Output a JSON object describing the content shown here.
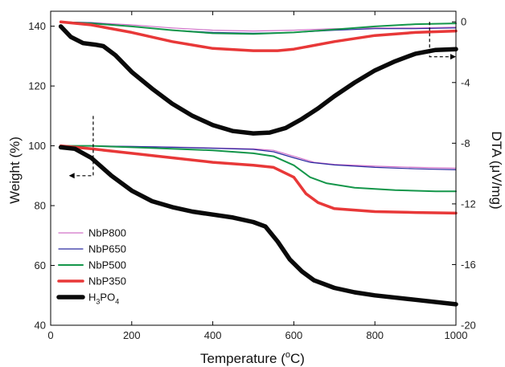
{
  "chart_data": {
    "type": "line",
    "xlabel_main": "Temperature (",
    "xlabel_sup": "o",
    "xlabel_tail": "C)",
    "ylabel_left": "Weight (%)",
    "ylabel_right": "DTA (μV/mg)",
    "xlim": [
      0,
      1000
    ],
    "ylim_left": [
      40,
      145
    ],
    "ylim_right": [
      -20,
      0.7
    ],
    "x_ticks": [
      0,
      200,
      400,
      600,
      800,
      1000
    ],
    "y_left_ticks": [
      40,
      60,
      80,
      100,
      120,
      140
    ],
    "y_right_ticks": [
      0,
      -4,
      -8,
      -12,
      -16,
      -20
    ],
    "grid": false,
    "legend_position": "lower-left",
    "series": [
      {
        "name": "NbP800",
        "color": "#d070c8",
        "width": 1.2,
        "weight": {
          "x": [
            25,
            100,
            200,
            300,
            400,
            500,
            550,
            600,
            650,
            700,
            800,
            900,
            1000
          ],
          "y": [
            100,
            100,
            99.8,
            99.6,
            99.3,
            99,
            98.5,
            96.5,
            94.5,
            93.8,
            93.2,
            92.8,
            92.5
          ]
        },
        "dta": {
          "x": [
            25,
            100,
            200,
            300,
            400,
            500,
            600,
            700,
            800,
            900,
            1000
          ],
          "y": [
            0,
            -0.05,
            -0.2,
            -0.4,
            -0.55,
            -0.6,
            -0.55,
            -0.45,
            -0.4,
            -0.4,
            -0.35
          ]
        }
      },
      {
        "name": "NbP650",
        "color": "#2a2aa0",
        "width": 1.2,
        "weight": {
          "x": [
            25,
            100,
            200,
            300,
            400,
            500,
            550,
            600,
            640,
            700,
            800,
            900,
            1000
          ],
          "y": [
            100,
            100,
            99.8,
            99.5,
            99.2,
            98.8,
            98,
            96,
            94.5,
            93.6,
            92.8,
            92.3,
            92
          ]
        },
        "dta": {
          "x": [
            25,
            100,
            200,
            300,
            400,
            500,
            600,
            700,
            800,
            900,
            1000
          ],
          "y": [
            0,
            -0.05,
            -0.3,
            -0.55,
            -0.7,
            -0.75,
            -0.7,
            -0.55,
            -0.45,
            -0.45,
            -0.4
          ]
        }
      },
      {
        "name": "NbP500",
        "color": "#14964a",
        "width": 2,
        "weight": {
          "x": [
            25,
            100,
            200,
            300,
            400,
            500,
            550,
            600,
            640,
            680,
            750,
            850,
            950,
            1000
          ],
          "y": [
            100,
            100,
            99.5,
            99,
            98.5,
            97.5,
            96.5,
            93.5,
            89.5,
            87.5,
            86,
            85.2,
            84.8,
            84.8
          ]
        },
        "dta": {
          "x": [
            25,
            100,
            200,
            300,
            400,
            500,
            600,
            700,
            800,
            900,
            1000
          ],
          "y": [
            0,
            -0.1,
            -0.3,
            -0.55,
            -0.75,
            -0.8,
            -0.7,
            -0.5,
            -0.3,
            -0.15,
            -0.1
          ]
        }
      },
      {
        "name": "NbP350",
        "color": "#e83838",
        "width": 3.5,
        "weight": {
          "x": [
            25,
            100,
            200,
            300,
            400,
            500,
            550,
            600,
            630,
            660,
            700,
            800,
            900,
            1000
          ],
          "y": [
            100,
            99,
            97.5,
            96,
            94.5,
            93.5,
            92.8,
            89.5,
            84,
            81,
            79,
            78,
            77.7,
            77.5
          ]
        },
        "dta": {
          "x": [
            25,
            100,
            200,
            300,
            400,
            500,
            560,
            600,
            700,
            800,
            900,
            1000
          ],
          "y": [
            0,
            -0.2,
            -0.7,
            -1.3,
            -1.75,
            -1.9,
            -1.9,
            -1.8,
            -1.3,
            -0.9,
            -0.7,
            -0.6
          ]
        }
      },
      {
        "name": "H3PO4",
        "legend_main": "H",
        "legend_sub1": "3",
        "legend_mid": "PO",
        "legend_sub2": "4",
        "color": "#0a0a0a",
        "width": 5.5,
        "weight": {
          "x": [
            25,
            60,
            100,
            150,
            200,
            250,
            300,
            350,
            400,
            450,
            500,
            530,
            560,
            590,
            620,
            650,
            700,
            750,
            800,
            900,
            1000
          ],
          "y": [
            99.5,
            99,
            96,
            90,
            85,
            81.5,
            79.5,
            78,
            77,
            76,
            74.5,
            73,
            68,
            62,
            58,
            55,
            52.5,
            51,
            50,
            48.5,
            47
          ]
        },
        "dta": {
          "x": [
            25,
            50,
            80,
            110,
            130,
            160,
            200,
            250,
            300,
            350,
            400,
            450,
            500,
            540,
            580,
            620,
            660,
            700,
            750,
            800,
            850,
            900,
            950,
            1000
          ],
          "y": [
            -0.3,
            -1.0,
            -1.4,
            -1.5,
            -1.6,
            -2.2,
            -3.3,
            -4.4,
            -5.4,
            -6.2,
            -6.8,
            -7.2,
            -7.35,
            -7.3,
            -7.0,
            -6.4,
            -5.7,
            -4.9,
            -4.0,
            -3.2,
            -2.6,
            -2.1,
            -1.85,
            -1.8
          ]
        }
      }
    ],
    "annotations": [
      {
        "kind": "left-arrow",
        "x": 105,
        "y_top": 110,
        "y_bottom": 90,
        "to_x": 45
      },
      {
        "kind": "right-arrow",
        "x": 935,
        "y_top": 0,
        "y_bottom": -2.3,
        "to_x": 1000
      }
    ]
  }
}
